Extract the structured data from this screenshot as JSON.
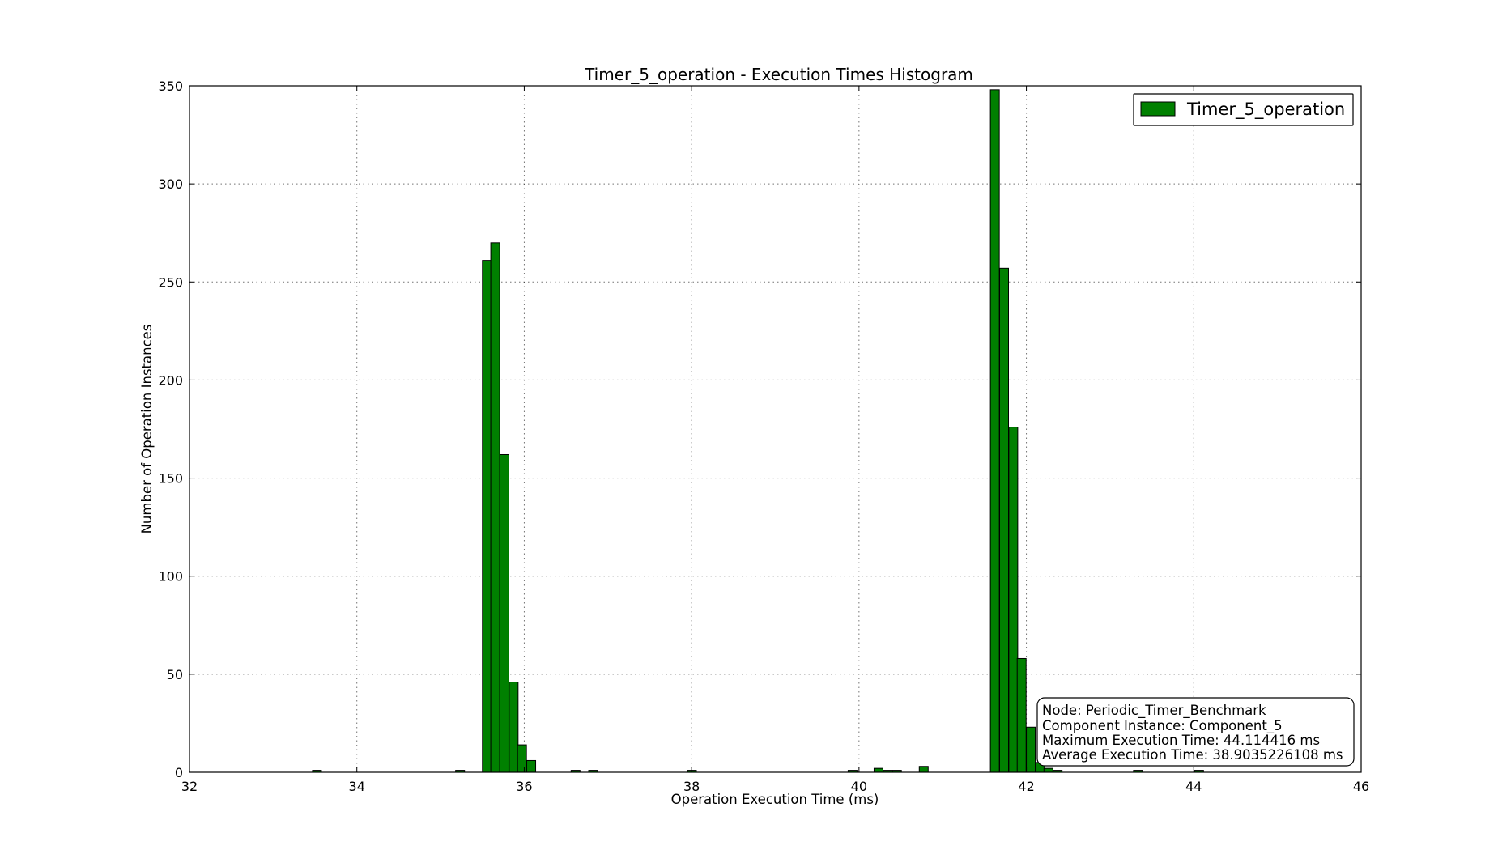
{
  "chart_data": {
    "type": "bar",
    "title": "Timer_5_operation - Execution Times Histogram",
    "xlabel": "Operation Execution Time (ms)",
    "ylabel": "Number of Operation Instances",
    "xlim": [
      32,
      46
    ],
    "ylim": [
      0,
      350
    ],
    "xticks": [
      32,
      34,
      36,
      38,
      40,
      42,
      44,
      46
    ],
    "yticks": [
      0,
      50,
      100,
      150,
      200,
      250,
      300,
      350
    ],
    "grid": true,
    "bar_color": "#008000",
    "bin_width": 0.1065,
    "series": [
      {
        "name": "Timer_5_operation",
        "bins": [
          {
            "x": 33.47,
            "count": 1
          },
          {
            "x": 35.18,
            "count": 1
          },
          {
            "x": 35.5,
            "count": 261
          },
          {
            "x": 35.6,
            "count": 270
          },
          {
            "x": 35.71,
            "count": 162
          },
          {
            "x": 35.82,
            "count": 46
          },
          {
            "x": 35.92,
            "count": 14
          },
          {
            "x": 36.03,
            "count": 6
          },
          {
            "x": 36.56,
            "count": 1
          },
          {
            "x": 36.77,
            "count": 1
          },
          {
            "x": 37.95,
            "count": 1
          },
          {
            "x": 39.87,
            "count": 1
          },
          {
            "x": 40.18,
            "count": 2
          },
          {
            "x": 40.29,
            "count": 1
          },
          {
            "x": 40.4,
            "count": 1
          },
          {
            "x": 40.72,
            "count": 3
          },
          {
            "x": 41.57,
            "count": 348
          },
          {
            "x": 41.68,
            "count": 257
          },
          {
            "x": 41.79,
            "count": 176
          },
          {
            "x": 41.89,
            "count": 58
          },
          {
            "x": 42.0,
            "count": 23
          },
          {
            "x": 42.11,
            "count": 5
          },
          {
            "x": 42.21,
            "count": 2
          },
          {
            "x": 42.32,
            "count": 1
          },
          {
            "x": 43.28,
            "count": 1
          },
          {
            "x": 44.01,
            "count": 1
          }
        ]
      }
    ],
    "legend": {
      "placement": "top-right",
      "entries": [
        "Timer_5_operation"
      ]
    },
    "annotation": {
      "placement": "bottom-right",
      "lines": [
        "Node: Periodic_Timer_Benchmark",
        "Component Instance: Component_5",
        "Maximum Execution Time: 44.114416 ms",
        "Average Execution Time: 38.9035226108 ms"
      ]
    }
  }
}
